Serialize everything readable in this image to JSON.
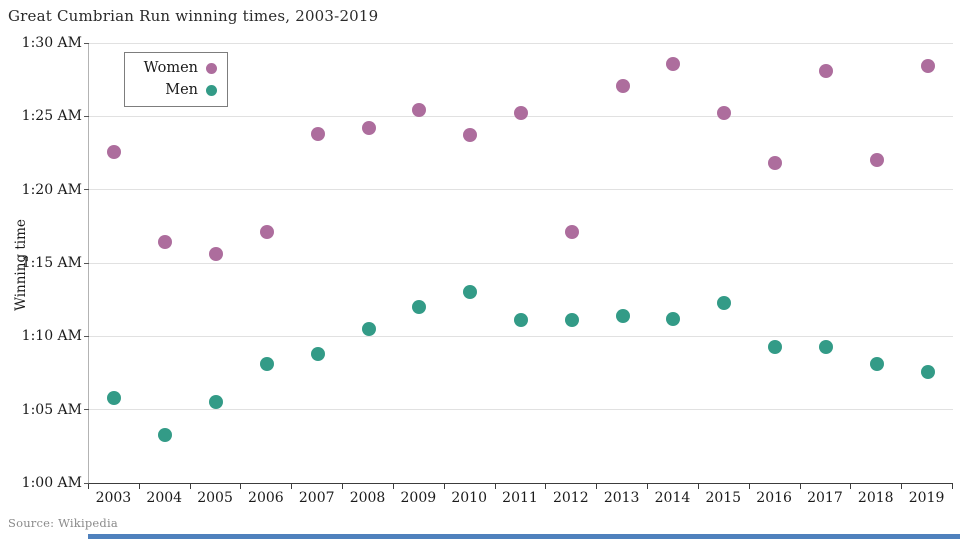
{
  "title": "Great Cumbrian Run winning times, 2003-2019",
  "source": "Source: Wikipedia",
  "legend": {
    "items": [
      {
        "label": "Women",
        "color": "#AD6D9D"
      },
      {
        "label": "Men",
        "color": "#339B87"
      }
    ]
  },
  "chart_data": {
    "type": "scatter",
    "title": "Great Cumbrian Run winning times, 2003-2019",
    "xlabel": "",
    "ylabel": "Winning time",
    "grid": true,
    "legend_position": "top-left-inside",
    "y_axis_unit": "time of 1:MM AM representing winning duration",
    "ylim_minutes_after_1am": [
      0,
      30
    ],
    "y_ticks": [
      {
        "label": "1:00 AM",
        "minutes": 0
      },
      {
        "label": "1:05 AM",
        "minutes": 5
      },
      {
        "label": "1:10 AM",
        "minutes": 10
      },
      {
        "label": "1:15 AM",
        "minutes": 15
      },
      {
        "label": "1:20 AM",
        "minutes": 20
      },
      {
        "label": "1:25 AM",
        "minutes": 25
      },
      {
        "label": "1:30 AM",
        "minutes": 30
      }
    ],
    "categories": [
      "2003",
      "2004",
      "2005",
      "2006",
      "2007",
      "2008",
      "2009",
      "2010",
      "2011",
      "2012",
      "2013",
      "2014",
      "2015",
      "2016",
      "2017",
      "2018",
      "2019"
    ],
    "series": [
      {
        "name": "Women",
        "color": "#AD6D9D",
        "times": [
          "1:22:36",
          "1:16:24",
          "1:15:36",
          "1:17:06",
          "1:23:48",
          "1:24:12",
          "1:25:24",
          "1:23:42",
          "1:25:12",
          "1:17:06",
          "1:27:06",
          "1:28:36",
          "1:25:12",
          "1:21:48",
          "1:28:06",
          "1:22:00",
          "1:28:24"
        ],
        "minutes_after_1am": [
          22.6,
          16.4,
          15.6,
          17.1,
          23.8,
          24.2,
          25.4,
          23.7,
          25.2,
          17.1,
          27.1,
          28.6,
          25.2,
          21.8,
          28.1,
          22.0,
          28.4
        ]
      },
      {
        "name": "Men",
        "color": "#339B87",
        "times": [
          "1:05:48",
          "1:03:18",
          "1:05:30",
          "1:08:06",
          "1:08:48",
          "1:10:30",
          "1:12:00",
          "1:13:00",
          "1:11:06",
          "1:11:06",
          "1:11:24",
          "1:11:12",
          "1:12:18",
          "1:09:18",
          "1:09:18",
          "1:08:06",
          "1:07:36"
        ],
        "minutes_after_1am": [
          5.8,
          3.3,
          5.5,
          8.1,
          8.8,
          10.5,
          12.0,
          13.0,
          11.1,
          11.1,
          11.4,
          11.2,
          12.3,
          9.3,
          9.3,
          8.1,
          7.6
        ]
      }
    ]
  },
  "decoration": {
    "bottom_bar_color": "#4f81bd"
  }
}
